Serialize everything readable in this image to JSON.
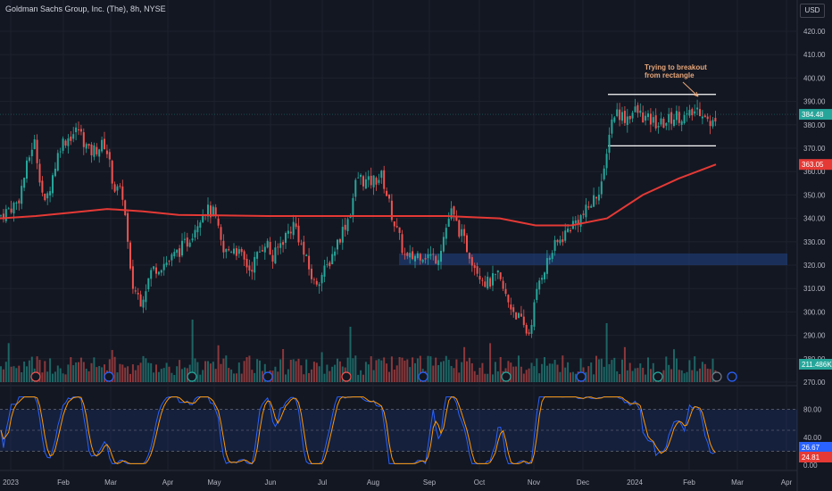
{
  "header": {
    "title": "Goldman Sachs Group, Inc. (The), 8h, NYSE",
    "currency": "USD"
  },
  "annotation": {
    "line1": "Trying to breakout",
    "line2": "from rectangle"
  },
  "price_tags": {
    "last_price": "384.48",
    "ma_value": "363.05",
    "volume": "211.486K",
    "stoch_k": "26.67",
    "stoch_d": "24.81"
  },
  "colors": {
    "background": "#131722",
    "up": "#26a69a",
    "down": "#ef5350",
    "ma": "#e53935",
    "zone": "#1e3a6e",
    "stoch_k": "#2962ff",
    "stoch_d": "#ff9800",
    "grid": "#1e222d"
  },
  "chart_data": {
    "type": "candlestick",
    "x_axis": {
      "labels": [
        "2023",
        "Feb",
        "Mar",
        "Apr",
        "May",
        "Jun",
        "Jul",
        "Aug",
        "Sep",
        "Oct",
        "Nov",
        "Dec",
        "2024",
        "Feb",
        "Mar",
        "Apr"
      ]
    },
    "y_axis": {
      "min": 270,
      "max": 425,
      "ticks": [
        "420.00",
        "410.00",
        "400.00",
        "390.00",
        "380.00",
        "370.00",
        "360.00",
        "350.00",
        "340.00",
        "330.00",
        "320.00",
        "310.00",
        "300.00",
        "290.00",
        "280.00",
        "270.00"
      ]
    },
    "price_path": {
      "description_points": [
        [
          "2023",
          340
        ],
        [
          "Jan-mid",
          372
        ],
        [
          "Feb",
          377
        ],
        [
          "Feb-end",
          360
        ],
        [
          "Mar",
          348
        ],
        [
          "Mar-mid",
          305
        ],
        [
          "Apr",
          327
        ],
        [
          "Apr-end",
          342
        ],
        [
          "May",
          331
        ],
        [
          "May-mid",
          326
        ],
        [
          "Jun",
          330
        ],
        [
          "Jul",
          343
        ],
        [
          "Jul-mid",
          313
        ],
        [
          "Aug",
          360
        ],
        [
          "Aug-mid",
          355
        ],
        [
          "Sep",
          320
        ],
        [
          "Sep-end",
          344
        ],
        [
          "Oct",
          318
        ],
        [
          "Oct-end",
          290
        ],
        [
          "Nov",
          322
        ],
        [
          "Nov-end",
          340
        ],
        [
          "Dec",
          343
        ],
        [
          "Dec-mid",
          385
        ],
        [
          "2024",
          383
        ],
        [
          "Feb",
          382
        ],
        [
          "Feb-mid",
          384.48
        ]
      ]
    },
    "moving_average": {
      "last_value": 363.05
    },
    "rectangle": {
      "top": 393,
      "bottom": 371
    },
    "support_zone": {
      "top": 325,
      "bottom": 320
    },
    "last_price": 384.48,
    "stochastic": {
      "levels": [
        "80.00",
        "40.00",
        "0.00"
      ],
      "k": 26.67,
      "d": 24.81
    },
    "volume_last": "211.486K"
  }
}
